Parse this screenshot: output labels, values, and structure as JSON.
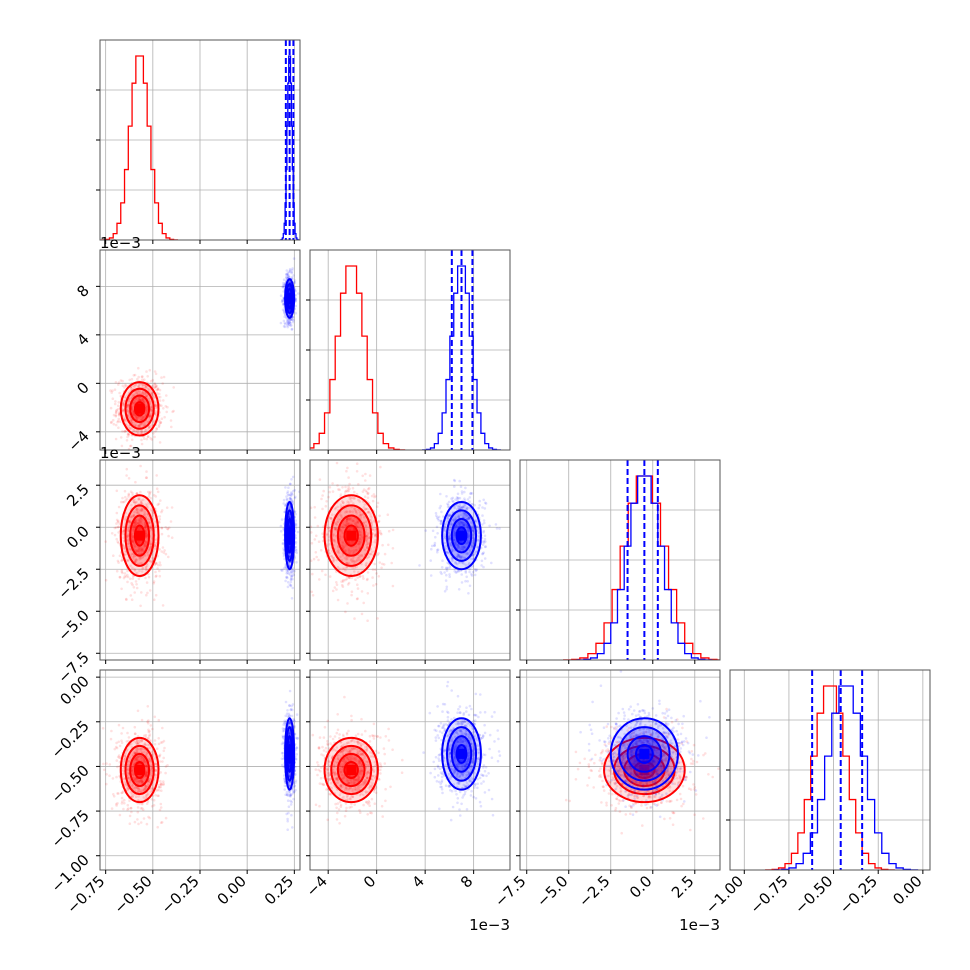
{
  "chart_data": {
    "type": "corner",
    "parameters": [
      {
        "index": 0,
        "range": [
          -0.78,
          0.28
        ],
        "ticks": [
          -0.75,
          -0.5,
          -0.25,
          0.0,
          0.25
        ],
        "tick_labels": [
          "−0.75",
          "−0.50",
          "−0.25",
          "0.00",
          "0.25"
        ],
        "offset_text": ""
      },
      {
        "index": 1,
        "range": [
          -5.5,
          11.0
        ],
        "ticks": [
          -4,
          0,
          4,
          8
        ],
        "tick_labels": [
          "−4",
          "0",
          "4",
          "8"
        ],
        "offset_text": "1e−3"
      },
      {
        "index": 2,
        "range": [
          -7.9,
          4.0
        ],
        "ticks": [
          -7.5,
          -5.0,
          -2.5,
          0.0,
          2.5
        ],
        "tick_labels": [
          "−7.5",
          "−5.0",
          "−2.5",
          "0.0",
          "2.5"
        ],
        "offset_text": "1e−3"
      },
      {
        "index": 3,
        "range": [
          -1.08,
          0.04
        ],
        "ticks": [
          -1.0,
          -0.75,
          -0.5,
          -0.25,
          0.0
        ],
        "tick_labels": [
          "−1.00",
          "−0.75",
          "−0.50",
          "−0.25",
          "0.00"
        ],
        "offset_text": ""
      }
    ],
    "series": [
      {
        "color": "#ff0000",
        "mean": [
          -0.57,
          -2.1,
          -0.5,
          -0.52
        ],
        "sd": [
          0.05,
          1.1,
          1.2,
          0.09
        ]
      },
      {
        "color": "#0000ff",
        "mean": [
          0.225,
          7.0,
          -0.5,
          -0.43
        ],
        "sd": [
          0.012,
          0.8,
          1.0,
          0.1
        ],
        "quantiles": [
          [
            0.205,
            0.225,
            0.245
          ],
          [
            6.2,
            7.0,
            7.9
          ],
          [
            -1.5,
            -0.5,
            0.3
          ],
          [
            -0.62,
            -0.46,
            -0.34
          ]
        ]
      }
    ],
    "grid": true,
    "colors": {
      "series_a": "#ff0000",
      "series_b": "#0000ff",
      "grid": "#b0b0b0"
    }
  }
}
